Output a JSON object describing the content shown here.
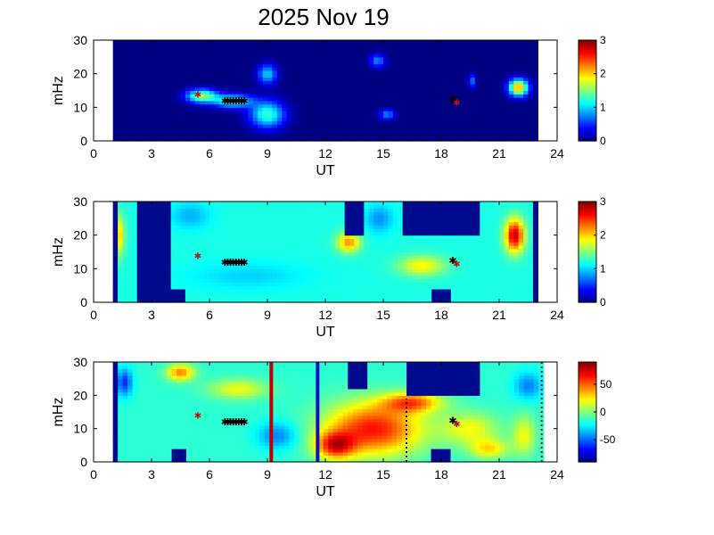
{
  "title": "2025 Nov 19",
  "colors": {
    "background_dark_blue": "#000a8c",
    "marker_black": "#000000",
    "marker_red": "#c01010",
    "line_red": "#c00000",
    "line_blue": "#1010c0"
  },
  "chart_data": [
    {
      "type": "heatmap",
      "xlabel": "UT",
      "ylabel": "mHz",
      "xlim": [
        0,
        24
      ],
      "ylim": [
        0,
        30
      ],
      "xticks": [
        "0",
        "3",
        "6",
        "9",
        "12",
        "15",
        "18",
        "21",
        "24"
      ],
      "yticks": [
        "0",
        "10",
        "20",
        "30"
      ],
      "data_span_ut": [
        1,
        23
      ],
      "colorbar": {
        "min": 0,
        "max": 3,
        "ticks": [
          "0",
          "1",
          "2",
          "3"
        ],
        "colormap": "jet"
      },
      "base_value": 0,
      "blobs": [
        {
          "ut": 5.6,
          "mhz": 13.5,
          "value": 1.6,
          "w_ut": 0.8,
          "h_mhz": 2.0
        },
        {
          "ut": 7.2,
          "mhz": 12.0,
          "value": 1.3,
          "w_ut": 1.0,
          "h_mhz": 2.0
        },
        {
          "ut": 9.0,
          "mhz": 8.0,
          "value": 1.3,
          "w_ut": 0.9,
          "h_mhz": 4.0
        },
        {
          "ut": 9.0,
          "mhz": 20.0,
          "value": 1.0,
          "w_ut": 0.5,
          "h_mhz": 3.0
        },
        {
          "ut": 14.7,
          "mhz": 24.0,
          "value": 0.8,
          "w_ut": 0.4,
          "h_mhz": 2.0
        },
        {
          "ut": 15.2,
          "mhz": 8.0,
          "value": 0.8,
          "w_ut": 0.4,
          "h_mhz": 1.5
        },
        {
          "ut": 19.6,
          "mhz": 18.0,
          "value": 0.7,
          "w_ut": 0.2,
          "h_mhz": 2.0
        },
        {
          "ut": 22.0,
          "mhz": 16.0,
          "value": 2.2,
          "w_ut": 0.5,
          "h_mhz": 2.5
        }
      ],
      "masked_regions": [],
      "vertical_lines": [],
      "markers_black": {
        "ut_from": 6.8,
        "ut_to": 7.8,
        "mhz": 12,
        "count": 8
      },
      "markers_black_2": {
        "ut": 18.6,
        "mhz": 12.5
      },
      "markers_red": [
        {
          "ut": 5.4,
          "mhz": 14
        },
        {
          "ut": 18.8,
          "mhz": 11.5
        }
      ]
    },
    {
      "type": "heatmap",
      "xlabel": "UT",
      "ylabel": "mHz",
      "xlim": [
        0,
        24
      ],
      "ylim": [
        0,
        30
      ],
      "xticks": [
        "0",
        "3",
        "6",
        "9",
        "12",
        "15",
        "18",
        "21",
        "24"
      ],
      "yticks": [
        "0",
        "10",
        "20",
        "30"
      ],
      "data_span_ut": [
        1,
        23
      ],
      "colorbar": {
        "min": 0,
        "max": 3,
        "ticks": [
          "0",
          "1",
          "2",
          "3"
        ],
        "colormap": "jet"
      },
      "base_value": 1.2,
      "blobs": [
        {
          "ut": 1.3,
          "mhz": 20.0,
          "value": 2.0,
          "w_ut": 0.3,
          "h_mhz": 6.0
        },
        {
          "ut": 21.8,
          "mhz": 20.0,
          "value": 2.8,
          "w_ut": 0.5,
          "h_mhz": 5.0
        },
        {
          "ut": 17.0,
          "mhz": 11.0,
          "value": 1.9,
          "w_ut": 1.2,
          "h_mhz": 3.0
        },
        {
          "ut": 13.2,
          "mhz": 18.0,
          "value": 2.2,
          "w_ut": 0.6,
          "h_mhz": 3.0
        },
        {
          "ut": 5.0,
          "mhz": 26.0,
          "value": 0.9,
          "w_ut": 1.0,
          "h_mhz": 4.0
        },
        {
          "ut": 14.8,
          "mhz": 25.0,
          "value": 0.8,
          "w_ut": 0.7,
          "h_mhz": 4.0
        },
        {
          "ut": 8.0,
          "mhz": 8.0,
          "value": 1.0,
          "w_ut": 3.0,
          "h_mhz": 4.0
        }
      ],
      "masked_regions": [
        {
          "ut_from": 1.0,
          "ut_to": 1.15,
          "mhz_from": 0,
          "mhz_to": 30
        },
        {
          "ut_from": 2.3,
          "ut_to": 4.1,
          "mhz_from": 0,
          "mhz_to": 30
        },
        {
          "ut_from": 4.0,
          "ut_to": 4.7,
          "mhz_from": 0,
          "mhz_to": 3.5
        },
        {
          "ut_from": 13.1,
          "ut_to": 14.1,
          "mhz_from": 20,
          "mhz_to": 30
        },
        {
          "ut_from": 16.1,
          "ut_to": 19.9,
          "mhz_from": 20,
          "mhz_to": 30
        },
        {
          "ut_from": 17.4,
          "ut_to": 18.4,
          "mhz_from": 0,
          "mhz_to": 3.5
        },
        {
          "ut_from": 22.8,
          "ut_to": 23.0,
          "mhz_from": 0,
          "mhz_to": 30
        }
      ],
      "vertical_lines": [],
      "markers_black": {
        "ut_from": 6.8,
        "ut_to": 7.8,
        "mhz": 12,
        "count": 8
      },
      "markers_black_2": {
        "ut": 18.6,
        "mhz": 12.5
      },
      "markers_red": [
        {
          "ut": 5.4,
          "mhz": 14
        },
        {
          "ut": 18.8,
          "mhz": 11.5
        }
      ]
    },
    {
      "type": "heatmap",
      "xlabel": "UT",
      "ylabel": "mHz",
      "xlim": [
        0,
        24
      ],
      "ylim": [
        0,
        30
      ],
      "xticks": [
        "0",
        "3",
        "6",
        "9",
        "12",
        "15",
        "18",
        "21",
        "24"
      ],
      "yticks": [
        "0",
        "10",
        "20",
        "30"
      ],
      "data_span_ut": [
        1,
        23.3
      ],
      "colorbar": {
        "min": -90,
        "max": 90,
        "ticks": [
          "50",
          "0",
          "-50"
        ],
        "tick_values": [
          50,
          0,
          -50
        ],
        "colormap": "jet"
      },
      "base_value": -15,
      "blobs": [
        {
          "ut": 14.5,
          "mhz": 10.0,
          "value": 65,
          "w_ut": 2.5,
          "h_mhz": 8.0
        },
        {
          "ut": 12.5,
          "mhz": 5.0,
          "value": 55,
          "w_ut": 1.0,
          "h_mhz": 4.0
        },
        {
          "ut": 16.5,
          "mhz": 18.0,
          "value": 45,
          "w_ut": 1.5,
          "h_mhz": 3.0
        },
        {
          "ut": 19.5,
          "mhz": 10.0,
          "value": 20,
          "w_ut": 1.5,
          "h_mhz": 5.0
        },
        {
          "ut": 20.5,
          "mhz": 4.0,
          "value": 25,
          "w_ut": 1.0,
          "h_mhz": 3.0
        },
        {
          "ut": 22.3,
          "mhz": 8.0,
          "value": 20,
          "w_ut": 0.6,
          "h_mhz": 6.0
        },
        {
          "ut": 4.5,
          "mhz": 27.0,
          "value": 45,
          "w_ut": 0.7,
          "h_mhz": 2.5
        },
        {
          "ut": 7.5,
          "mhz": 22.0,
          "value": 20,
          "w_ut": 1.5,
          "h_mhz": 3.0
        },
        {
          "ut": 9.5,
          "mhz": 8.0,
          "value": -45,
          "w_ut": 1.0,
          "h_mhz": 4.0
        },
        {
          "ut": 1.6,
          "mhz": 24.0,
          "value": -60,
          "w_ut": 0.4,
          "h_mhz": 4.0
        },
        {
          "ut": 22.5,
          "mhz": 23.0,
          "value": -45,
          "w_ut": 0.7,
          "h_mhz": 4.0
        }
      ],
      "masked_regions": [
        {
          "ut_from": 1.0,
          "ut_to": 1.15,
          "mhz_from": 0,
          "mhz_to": 30
        },
        {
          "ut_from": 4.0,
          "ut_to": 4.7,
          "mhz_from": 0,
          "mhz_to": 3.5
        },
        {
          "ut_from": 13.1,
          "ut_to": 14.1,
          "mhz_from": 22,
          "mhz_to": 30
        },
        {
          "ut_from": 16.1,
          "ut_to": 19.9,
          "mhz_from": 20,
          "mhz_to": 30
        },
        {
          "ut_from": 17.4,
          "ut_to": 18.4,
          "mhz_from": 0,
          "mhz_to": 3.5
        }
      ],
      "vertical_lines": [
        {
          "ut": 9.2,
          "style": "solid",
          "color": "#c00000"
        },
        {
          "ut": 11.6,
          "style": "solid",
          "color": "#1010c0"
        },
        {
          "ut": 16.2,
          "style": "dotted",
          "color": "#000000",
          "mhz_from": 0,
          "mhz_to": 19
        },
        {
          "ut": 23.2,
          "style": "dotted",
          "color": "#c00000",
          "mhz_from": 0,
          "mhz_to": 30
        }
      ],
      "markers_black": {
        "ut_from": 6.8,
        "ut_to": 7.8,
        "mhz": 12,
        "count": 8
      },
      "markers_black_2": {
        "ut": 18.6,
        "mhz": 12.5
      },
      "markers_red": [
        {
          "ut": 5.4,
          "mhz": 14
        },
        {
          "ut": 18.8,
          "mhz": 11.5
        }
      ]
    }
  ]
}
